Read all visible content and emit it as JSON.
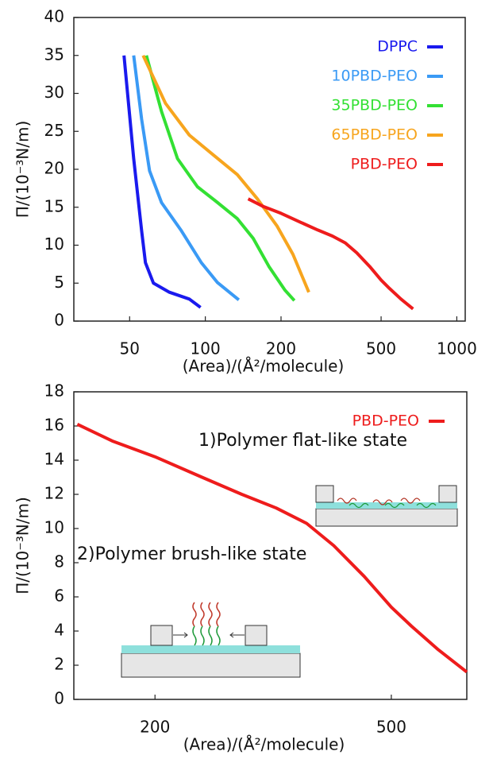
{
  "chart_data": [
    {
      "type": "line",
      "xscale": "log",
      "xlabel": "(Area)/(Å²/molecule)",
      "ylabel": "Π/(10⁻³N/m)",
      "xlim": [
        30,
        1080
      ],
      "ylim": [
        0,
        40
      ],
      "xticks": [
        50,
        100,
        200,
        500,
        1000
      ],
      "yticks": [
        0,
        5,
        10,
        15,
        20,
        25,
        30,
        35,
        40
      ],
      "grid": false,
      "legend": "upper right",
      "series": [
        {
          "name": "DPPC",
          "color": "#1a1aee",
          "x": [
            47.5,
            51.9,
            55.8,
            57.8,
            62.2,
            72,
            86.4,
            95.7
          ],
          "values": [
            35,
            21.4,
            11.9,
            7.7,
            5,
            3.8,
            2.9,
            1.8
          ]
        },
        {
          "name": "10PBD-PEO",
          "color": "#3a9af5",
          "x": [
            51.9,
            55.8,
            60,
            67,
            80.3,
            96.4,
            111.6,
            135.9
          ],
          "values": [
            35,
            26.6,
            19.8,
            15.6,
            11.9,
            7.7,
            5.1,
            2.8
          ]
        },
        {
          "name": "35PBD-PEO",
          "color": "#33e033",
          "x": [
            58.3,
            67,
            77.5,
            93,
            112,
            134,
            155,
            179,
            207,
            226
          ],
          "values": [
            35,
            27.6,
            21.4,
            17.7,
            15.6,
            13.5,
            10.9,
            7.2,
            4.1,
            2.7
          ]
        },
        {
          "name": "65PBD-PEO",
          "color": "#f7a51e",
          "x": [
            56.6,
            69.4,
            86.4,
            107.6,
            134,
            161,
            193,
            223,
            258
          ],
          "values": [
            35,
            28.7,
            24.5,
            21.9,
            19.3,
            16.1,
            12.5,
            8.8,
            3.8
          ]
        },
        {
          "name": "PBD-PEO",
          "color": "#ee1c1c",
          "x": [
            148,
            170,
            200,
            240,
            280,
            320,
            360,
            400,
            450,
            500,
            540,
            600,
            670
          ],
          "values": [
            16.1,
            15.1,
            14.2,
            13.0,
            12.0,
            11.2,
            10.3,
            9.0,
            7.2,
            5.4,
            4.3,
            2.9,
            1.6
          ]
        }
      ]
    },
    {
      "type": "line",
      "xscale": "log",
      "xlabel": "(Area)/(Å²/molecule)",
      "ylabel": "Π/(10⁻³N/m)",
      "xlim": [
        146,
        670
      ],
      "ylim": [
        0,
        18
      ],
      "xticks": [
        200,
        500
      ],
      "yticks": [
        0,
        2,
        4,
        6,
        8,
        10,
        12,
        14,
        16,
        18
      ],
      "grid": false,
      "legend": "upper right",
      "annotations": [
        "1)Polymer flat-like state",
        "2)Polymer brush-like state"
      ],
      "series": [
        {
          "name": "PBD-PEO",
          "color": "#ee1c1c",
          "x": [
            148,
            170,
            200,
            240,
            280,
            320,
            360,
            400,
            450,
            500,
            540,
            600,
            670
          ],
          "values": [
            16.1,
            15.1,
            14.2,
            13.0,
            12.0,
            11.2,
            10.3,
            9.0,
            7.2,
            5.4,
            4.3,
            2.9,
            1.6
          ]
        }
      ]
    }
  ]
}
